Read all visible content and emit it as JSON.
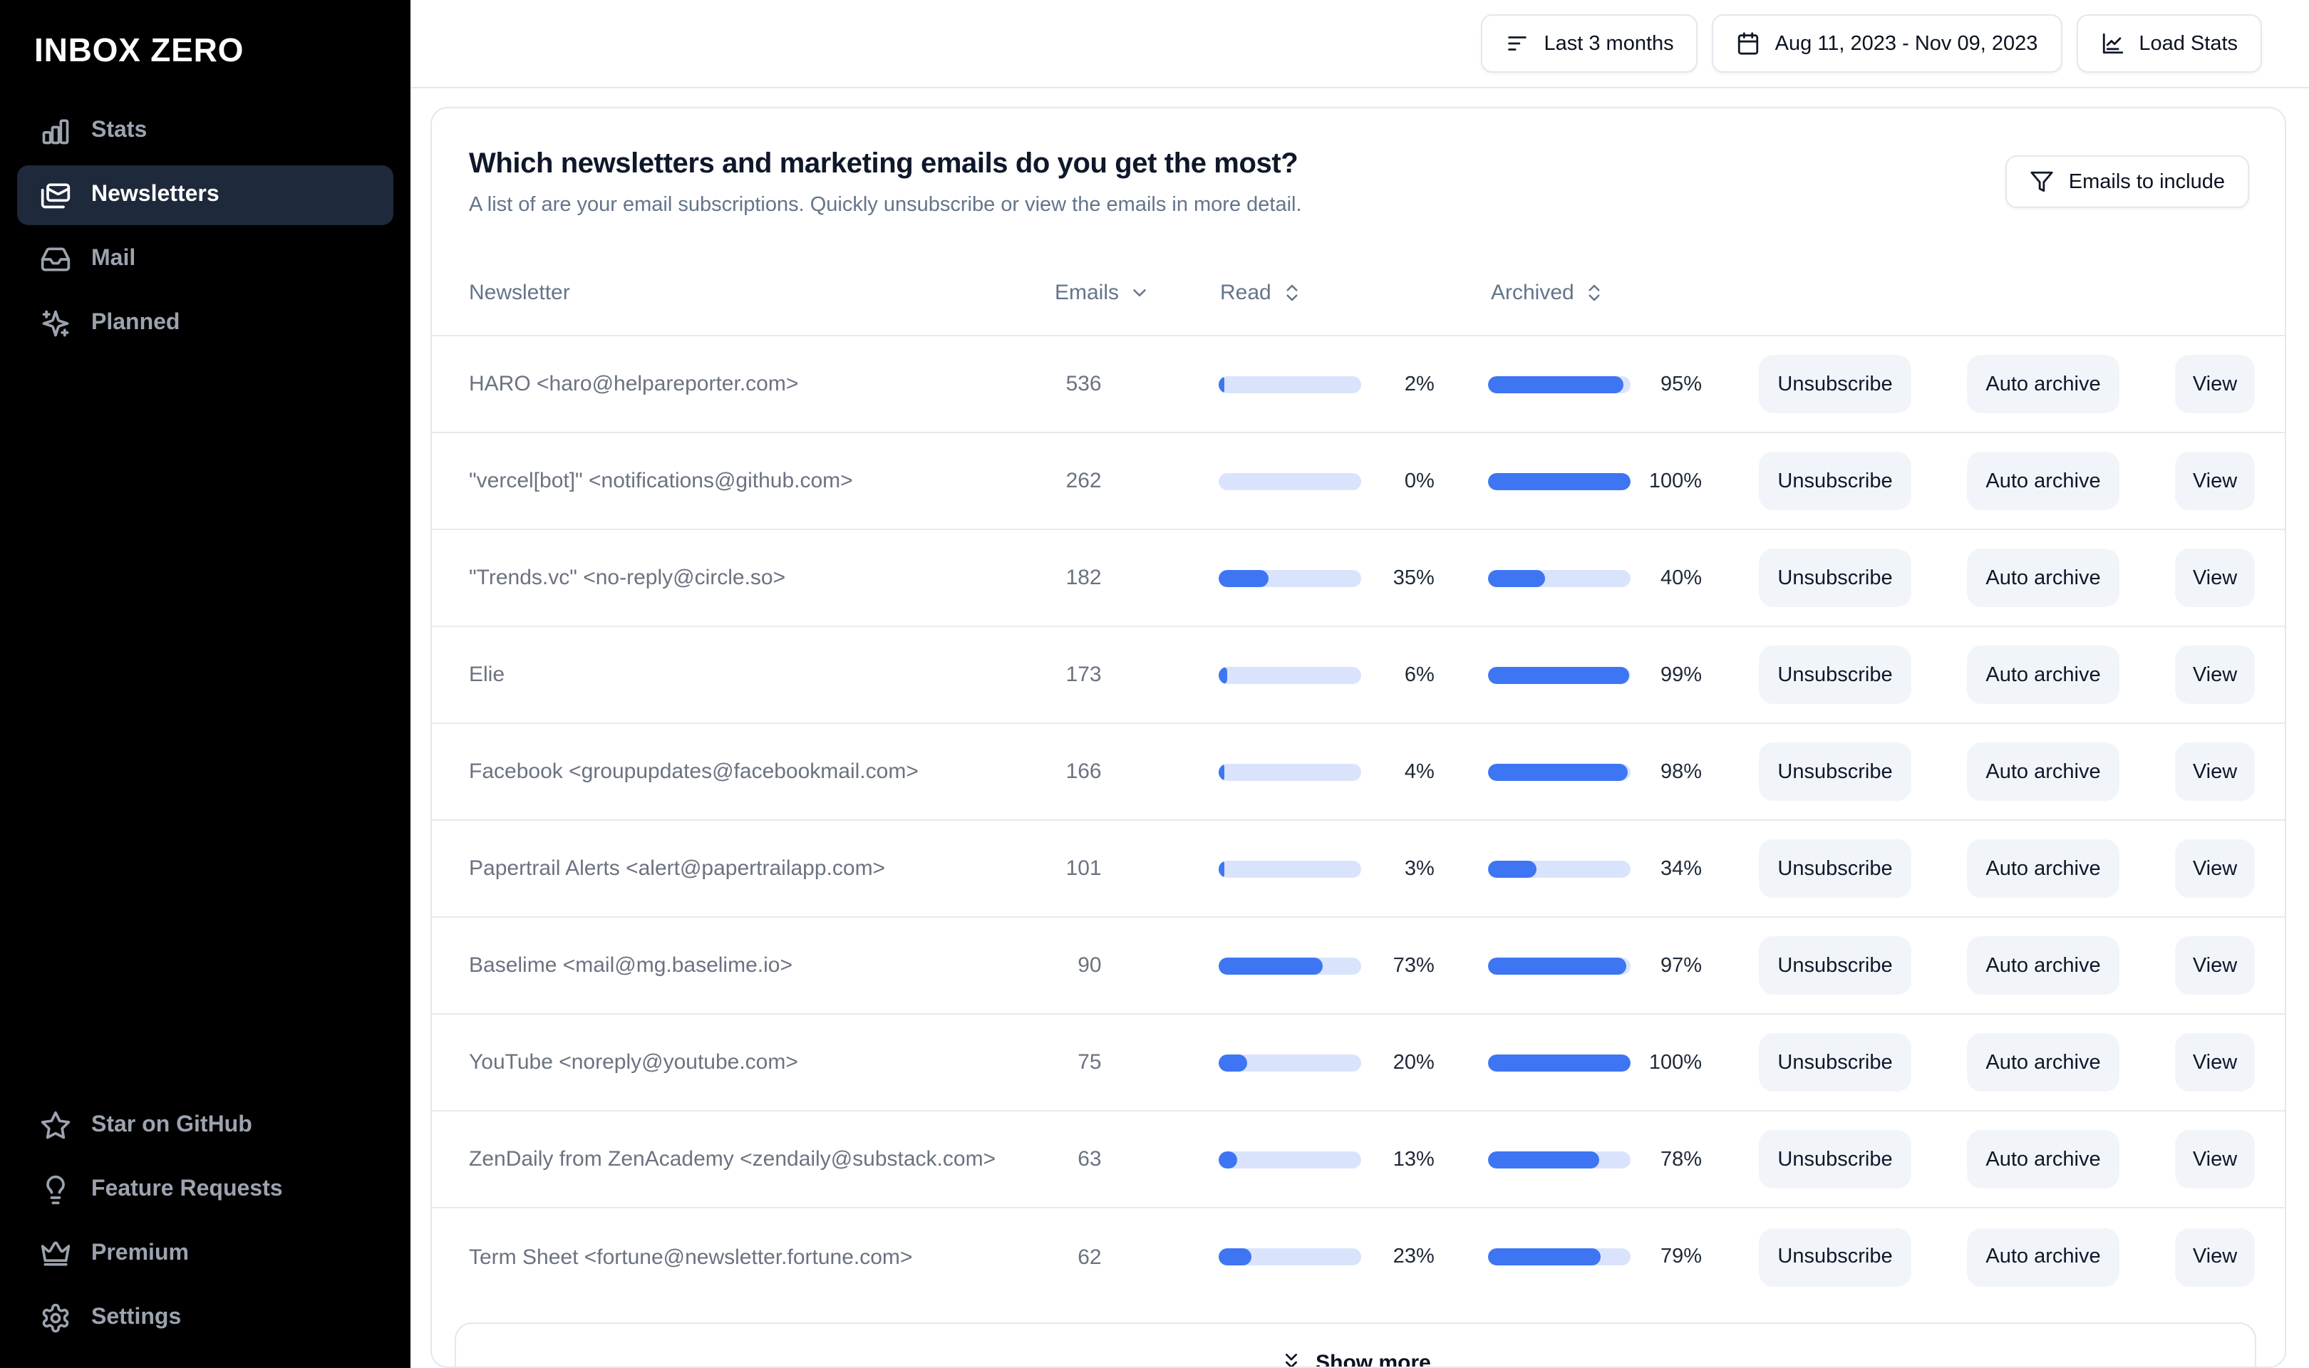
{
  "sidebar": {
    "logo": "INBOX ZERO",
    "nav": [
      {
        "label": "Stats",
        "icon": "bar-chart-icon",
        "active": false
      },
      {
        "label": "Newsletters",
        "icon": "newsletters-icon",
        "active": true
      },
      {
        "label": "Mail",
        "icon": "inbox-icon",
        "active": false
      },
      {
        "label": "Planned",
        "icon": "sparkles-icon",
        "active": false
      }
    ],
    "secondary_nav": [
      {
        "label": "Star on GitHub",
        "icon": "star-icon"
      },
      {
        "label": "Feature Requests",
        "icon": "lightbulb-icon"
      },
      {
        "label": "Premium",
        "icon": "crown-icon"
      },
      {
        "label": "Settings",
        "icon": "gear-icon"
      }
    ]
  },
  "topbar": {
    "period_button": {
      "label": "Last 3 months",
      "icon": "filter-lines-icon"
    },
    "date_range_button": {
      "label": "Aug 11, 2023 - Nov 09, 2023",
      "icon": "calendar-icon"
    },
    "load_stats_button": {
      "label": "Load Stats",
      "icon": "line-chart-icon"
    }
  },
  "newsletters_card": {
    "title": "Which newsletters and marketing emails do you get the most?",
    "subtitle": "A list of are your email subscriptions. Quickly unsubscribe or view the emails in more detail.",
    "filter_button": {
      "label": "Emails to include",
      "icon": "funnel-icon"
    },
    "table": {
      "columns": [
        "Newsletter",
        "Emails",
        "Read",
        "Archived"
      ],
      "actions": [
        "Unsubscribe",
        "Auto archive",
        "View"
      ],
      "rows": [
        {
          "newsletter": "HARO <haro@helpareporter.com>",
          "emails": 536,
          "read_pct": 2,
          "archived_pct": 95
        },
        {
          "newsletter": "\"vercel[bot]\" <notifications@github.com>",
          "emails": 262,
          "read_pct": 0,
          "archived_pct": 100
        },
        {
          "newsletter": "\"Trends.vc\" <no-reply@circle.so>",
          "emails": 182,
          "read_pct": 35,
          "archived_pct": 40
        },
        {
          "newsletter": "Elie",
          "emails": 173,
          "read_pct": 6,
          "archived_pct": 99
        },
        {
          "newsletter": "Facebook <groupupdates@facebookmail.com>",
          "emails": 166,
          "read_pct": 4,
          "archived_pct": 98
        },
        {
          "newsletter": "Papertrail Alerts <alert@papertrailapp.com>",
          "emails": 101,
          "read_pct": 3,
          "archived_pct": 34
        },
        {
          "newsletter": "Baselime <mail@mg.baselime.io>",
          "emails": 90,
          "read_pct": 73,
          "archived_pct": 97
        },
        {
          "newsletter": "YouTube <noreply@youtube.com>",
          "emails": 75,
          "read_pct": 20,
          "archived_pct": 100
        },
        {
          "newsletter": "ZenDaily from ZenAcademy <zendaily@substack.com>",
          "emails": 63,
          "read_pct": 13,
          "archived_pct": 78
        },
        {
          "newsletter": "Term Sheet <fortune@newsletter.fortune.com>",
          "emails": 62,
          "read_pct": 23,
          "archived_pct": 79
        }
      ]
    },
    "show_more_label": "Show more"
  },
  "colors": {
    "sidebar_bg": "#000000",
    "sidebar_active_bg": "#1e293b",
    "bar_track": "#d9e4fc",
    "bar_fill": "#3e75f2",
    "action_button_bg": "#f1f5f9",
    "border": "#e2e8f0"
  }
}
